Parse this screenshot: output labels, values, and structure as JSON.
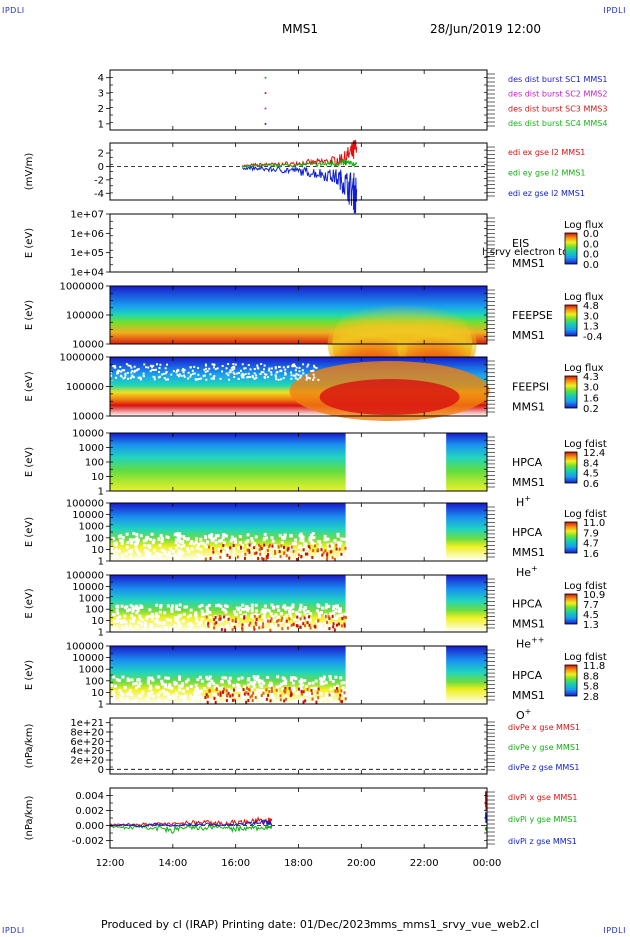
{
  "header": {
    "corner_left_top": "IPDLI",
    "corner_right_top": "IPDLI",
    "corner_left_bottom": "IPDLI",
    "corner_right_bottom": "IPDLI",
    "title": "MMS1",
    "date": "28/Jun/2019 12:00"
  },
  "footer": {
    "produced": "Produced by cl (IRAP)",
    "printing": "Printing date: 01/Dec/2023",
    "file": "mms_mms1_srvy_vue_web2.cl"
  },
  "chart_data": {
    "type": "multi-panel time series and spectrograms",
    "x_ticks": [
      "12:00",
      "14:00",
      "16:00",
      "18:00",
      "20:00",
      "22:00",
      "00:00"
    ],
    "x_range_hours": [
      12,
      24
    ],
    "panels": [
      {
        "id": "des-dist-burst",
        "type": "scatter",
        "ylabel": "",
        "ylim": [
          0.6,
          4.5
        ],
        "yticks": [
          "4",
          "3",
          "2",
          "1"
        ],
        "ytick_values": [
          4,
          3,
          2,
          1
        ],
        "series": [
          {
            "name": "des dist burst SC1 MMS1",
            "color": "#1c1cc8",
            "x": [
              16.95
            ],
            "y": [
              1
            ]
          },
          {
            "name": "des dist burst SC2 MMS2",
            "color": "#c81cc8",
            "x": [
              16.95
            ],
            "y": [
              2
            ]
          },
          {
            "name": "des dist burst SC3 MMS3",
            "color": "#d01818",
            "x": [
              16.95
            ],
            "y": [
              3
            ]
          },
          {
            "name": "des dist burst SC4 MMS4",
            "color": "#18b418",
            "x": [
              16.95
            ],
            "y": [
              4
            ]
          }
        ]
      },
      {
        "id": "edi-e",
        "type": "line",
        "ylabel": "(mV/m)",
        "ylim": [
          -5,
          3.5
        ],
        "yticks": [
          "2",
          "0",
          "-2",
          "-4"
        ],
        "ytick_values": [
          2,
          0,
          -2,
          -4
        ],
        "zero_line": true,
        "series": [
          {
            "name": "edi ex gse l2 MMS1",
            "color": "#e01010",
            "x": [
              16.2,
              16.6,
              17.0,
              17.4,
              17.8,
              18.2,
              18.6,
              19.0,
              19.3,
              19.5,
              19.7,
              19.85
            ],
            "y": [
              0.1,
              0.2,
              0.3,
              0.3,
              0.4,
              0.5,
              0.6,
              0.8,
              1.0,
              1.4,
              2.0,
              2.6
            ]
          },
          {
            "name": "edi ey gse l2 MMS1",
            "color": "#10b010",
            "x": [
              16.2,
              16.6,
              17.0,
              17.4,
              17.8,
              18.2,
              18.6,
              19.0,
              19.3,
              19.5,
              19.7,
              19.85
            ],
            "y": [
              0.0,
              0.1,
              0.2,
              0.2,
              0.2,
              0.3,
              0.3,
              0.4,
              0.5,
              0.6,
              0.4,
              0.3
            ]
          },
          {
            "name": "edi ez gse l2 MMS1",
            "color": "#1020d0",
            "x": [
              16.2,
              16.6,
              17.0,
              17.4,
              17.8,
              18.2,
              18.6,
              19.0,
              19.3,
              19.5,
              19.7,
              19.85
            ],
            "y": [
              -0.2,
              -0.3,
              -0.4,
              -0.5,
              -0.6,
              -0.8,
              -1.0,
              -1.3,
              -1.8,
              -2.6,
              -3.5,
              -4.2
            ]
          }
        ]
      },
      {
        "id": "eis",
        "type": "heatmap",
        "ylabel": "E (eV)",
        "yticks": [
          "1e+07",
          "1e+06",
          "1e+05",
          "1e+04"
        ],
        "instrument": "EIS",
        "spacecraft": "MMS1",
        "overlay_text": "l_srvy electron to",
        "colorbar": {
          "title": "Log flux",
          "ticks": [
            "0.0",
            "0.0",
            "0.0",
            "0.0"
          ]
        }
      },
      {
        "id": "feepse",
        "type": "heatmap",
        "ylabel": "E (eV)",
        "yticks": [
          "1000000",
          "100000",
          "10000"
        ],
        "instrument": "FEEPSE",
        "spacecraft": "MMS1",
        "colorbar": {
          "title": "Log flux",
          "ticks": [
            "4.8",
            "3.0",
            "1.3",
            "-0.4"
          ]
        }
      },
      {
        "id": "feepsi",
        "type": "heatmap",
        "ylabel": "E (eV)",
        "yticks": [
          "1000000",
          "100000",
          "10000"
        ],
        "instrument": "FEEPSI",
        "spacecraft": "MMS1",
        "colorbar": {
          "title": "Log flux",
          "ticks": [
            "4.3",
            "3.0",
            "1.6",
            "0.2"
          ]
        }
      },
      {
        "id": "hpca-h",
        "type": "heatmap",
        "ylabel": "E (eV)",
        "yticks": [
          "10000",
          "1000",
          "100",
          "10",
          "1"
        ],
        "instrument": "HPCA",
        "spacecraft": "MMS1",
        "species": "H",
        "species_charge": "+",
        "colorbar": {
          "title": "Log fdist",
          "ticks": [
            "12.4",
            "8.4",
            "4.5",
            "0.6"
          ]
        }
      },
      {
        "id": "hpca-he",
        "type": "heatmap",
        "ylabel": "E (eV)",
        "yticks": [
          "100000",
          "10000",
          "1000",
          "100",
          "10",
          "1"
        ],
        "instrument": "HPCA",
        "spacecraft": "MMS1",
        "species": "He",
        "species_charge": "+",
        "colorbar": {
          "title": "Log fdist",
          "ticks": [
            "11.0",
            "7.9",
            "4.7",
            "1.6"
          ]
        }
      },
      {
        "id": "hpca-hepp",
        "type": "heatmap",
        "ylabel": "E (eV)",
        "yticks": [
          "100000",
          "10000",
          "1000",
          "100",
          "10",
          "1"
        ],
        "instrument": "HPCA",
        "spacecraft": "MMS1",
        "species": "He",
        "species_charge": "++",
        "colorbar": {
          "title": "Log fdist",
          "ticks": [
            "10.9",
            "7.7",
            "4.5",
            "1.3"
          ]
        }
      },
      {
        "id": "hpca-o",
        "type": "heatmap",
        "ylabel": "E (eV)",
        "yticks": [
          "100000",
          "10000",
          "1000",
          "100",
          "10",
          "1"
        ],
        "instrument": "HPCA",
        "spacecraft": "MMS1",
        "species": "O",
        "species_charge": "+",
        "colorbar": {
          "title": "Log fdist",
          "ticks": [
            "11.8",
            "8.8",
            "5.8",
            "2.8"
          ]
        }
      },
      {
        "id": "divpe",
        "type": "line",
        "ylabel": "(nPa/km)",
        "ylim": [
          -1e+20,
          1.1e+21
        ],
        "yticks": [
          "1e+21",
          "8e+20",
          "6e+20",
          "4e+20",
          "2e+20",
          "0"
        ],
        "ytick_values": [
          1e+21,
          8e+20,
          6e+20,
          4e+20,
          2e+20,
          0
        ],
        "zero_line": true,
        "series": [
          {
            "name": "divPe x gse MMS1",
            "color": "#e01010",
            "x": [],
            "y": []
          },
          {
            "name": "divPe y gse MMS1",
            "color": "#10b010",
            "x": [],
            "y": []
          },
          {
            "name": "divPe z gse MMS1",
            "color": "#1020d0",
            "x": [],
            "y": []
          }
        ]
      },
      {
        "id": "divpi",
        "type": "line",
        "ylabel": "(nPa/km)",
        "ylim": [
          -0.003,
          0.005
        ],
        "yticks": [
          "0.004",
          "0.002",
          "0.000",
          "-0.002"
        ],
        "ytick_values": [
          0.004,
          0.002,
          0.0,
          -0.002
        ],
        "zero_line": true,
        "series": [
          {
            "name": "divPi x gse MMS1",
            "color": "#e01010",
            "x": [
              12.0,
              12.5,
              13.0,
              13.5,
              14.0,
              14.5,
              15.0,
              15.5,
              16.0,
              16.5,
              17.0,
              17.15,
              23.95,
              24.0
            ],
            "y": [
              0.0001,
              0.0002,
              0.0001,
              0.0003,
              0.0002,
              0.0003,
              0.0004,
              0.0003,
              0.0004,
              0.0005,
              0.0006,
              0.0005,
              0.0025,
              0.0035
            ]
          },
          {
            "name": "divPi y gse MMS1",
            "color": "#10b010",
            "x": [
              12.0,
              12.5,
              13.0,
              13.5,
              14.0,
              14.5,
              15.0,
              15.5,
              16.0,
              16.5,
              17.0,
              17.15,
              23.95,
              24.0
            ],
            "y": [
              -0.0001,
              -0.0003,
              -0.0002,
              -0.0004,
              -0.0006,
              -0.0003,
              -0.0004,
              -0.0002,
              -0.0005,
              -0.0004,
              -0.0003,
              -0.0002,
              -0.0006,
              -0.0005
            ]
          },
          {
            "name": "divPi z gse MMS1",
            "color": "#1020d0",
            "x": [
              12.0,
              12.5,
              13.0,
              13.5,
              14.0,
              14.5,
              15.0,
              15.5,
              16.0,
              16.5,
              17.0,
              17.15,
              23.95,
              24.0
            ],
            "y": [
              0.0,
              0.0001,
              -0.0001,
              0.0002,
              0.0,
              0.0001,
              0.0002,
              0.0,
              0.0002,
              0.0003,
              0.0004,
              0.0002,
              0.0012,
              0.0008
            ]
          }
        ]
      }
    ]
  }
}
